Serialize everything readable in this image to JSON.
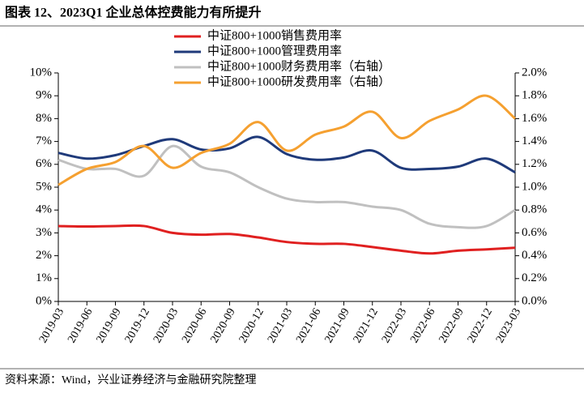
{
  "chart_data": {
    "type": "line",
    "title": "图表 12、2023Q1 企业总体控费能力有所提升",
    "source": "资料来源：Wind，兴业证券经济与金融研究院整理",
    "categories": [
      "2019-03",
      "2019-06",
      "2019-09",
      "2019-12",
      "2020-03",
      "2020-06",
      "2020-09",
      "2020-12",
      "2021-03",
      "2021-06",
      "2021-09",
      "2021-12",
      "2022-03",
      "2022-06",
      "2022-09",
      "2022-12",
      "2023-03"
    ],
    "ylim": [
      0,
      10
    ],
    "yticks": [
      {
        "value": 0,
        "label": "0%"
      },
      {
        "value": 1,
        "label": "1%"
      },
      {
        "value": 2,
        "label": "2%"
      },
      {
        "value": 3,
        "label": "3%"
      },
      {
        "value": 4,
        "label": "4%"
      },
      {
        "value": 5,
        "label": "5%"
      },
      {
        "value": 6,
        "label": "6%"
      },
      {
        "value": 7,
        "label": "7%"
      },
      {
        "value": 8,
        "label": "8%"
      },
      {
        "value": 9,
        "label": "9%"
      },
      {
        "value": 10,
        "label": "10%"
      }
    ],
    "y2lim": [
      0,
      2
    ],
    "y2ticks": [
      {
        "value": 0,
        "label": "0.0%"
      },
      {
        "value": 0.2,
        "label": "0.2%"
      },
      {
        "value": 0.4,
        "label": "0.4%"
      },
      {
        "value": 0.6,
        "label": "0.6%"
      },
      {
        "value": 0.8,
        "label": "0.8%"
      },
      {
        "value": 1.0,
        "label": "1.0%"
      },
      {
        "value": 1.2,
        "label": "1.2%"
      },
      {
        "value": 1.4,
        "label": "1.4%"
      },
      {
        "value": 1.6,
        "label": "1.6%"
      },
      {
        "value": 1.8,
        "label": "1.8%"
      },
      {
        "value": 2.0,
        "label": "2.0%"
      }
    ],
    "smooth": true,
    "series": [
      {
        "name": "中证800+1000销售费用率",
        "color": "#e02020",
        "values": [
          3.3,
          3.28,
          3.3,
          3.3,
          3.0,
          2.92,
          2.95,
          2.8,
          2.6,
          2.52,
          2.52,
          2.38,
          2.22,
          2.1,
          2.22,
          2.28,
          2.35
        ]
      },
      {
        "name": "中证800+1000管理费用率",
        "color": "#1f3a7a",
        "values": [
          6.5,
          6.25,
          6.4,
          6.8,
          7.1,
          6.65,
          6.7,
          7.2,
          6.45,
          6.2,
          6.3,
          6.6,
          5.85,
          5.8,
          5.9,
          6.25,
          5.65
        ]
      },
      {
        "name": "中证800+1000财务费用率（右轴）",
        "color": "#c0c0c0",
        "axis": "y2",
        "values": [
          1.24,
          1.16,
          1.16,
          1.1,
          1.36,
          1.18,
          1.13,
          1.0,
          0.9,
          0.87,
          0.87,
          0.83,
          0.8,
          0.68,
          0.65,
          0.66,
          0.8
        ]
      },
      {
        "name": "中证800+1000研发费用率（右轴）",
        "color": "#f5a030",
        "axis": "y2",
        "values": [
          1.02,
          1.16,
          1.22,
          1.36,
          1.17,
          1.3,
          1.38,
          1.57,
          1.32,
          1.46,
          1.53,
          1.66,
          1.43,
          1.58,
          1.68,
          1.8,
          1.6
        ]
      }
    ]
  }
}
